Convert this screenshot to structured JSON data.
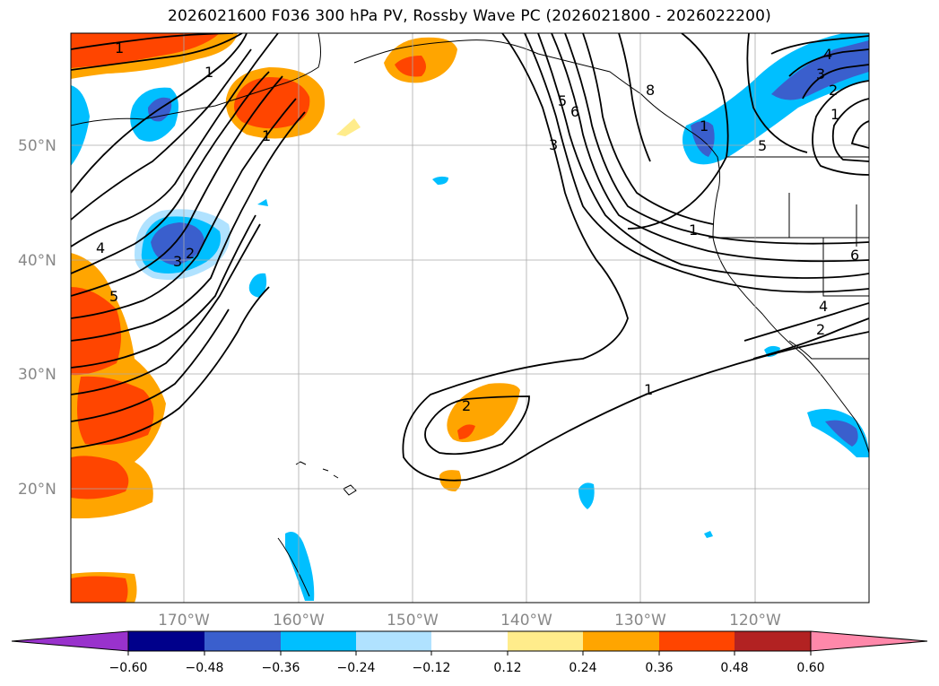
{
  "title": "2026021600 F036 300 hPa PV, Rossby Wave PC (2026021800 - 2026022200)",
  "lat_labels": [
    "50°N",
    "40°N",
    "30°N",
    "20°N"
  ],
  "lon_labels": [
    "170°W",
    "160°W",
    "150°W",
    "140°W",
    "130°W",
    "120°W"
  ],
  "contour_labels": [
    "1",
    "1",
    "1",
    "2",
    "3",
    "4",
    "5",
    "5",
    "6",
    "8",
    "3",
    "1",
    "5",
    "1",
    "2",
    "3",
    "4",
    "1",
    "2",
    "4",
    "6",
    "2",
    "1"
  ],
  "colorbar": {
    "ticks": [
      "−0.60",
      "−0.48",
      "−0.36",
      "−0.24",
      "−0.12",
      "0.12",
      "0.24",
      "0.36",
      "0.48",
      "0.60"
    ],
    "colors": [
      "#9932cc",
      "#00008b",
      "#3a5fcd",
      "#00bfff",
      "#b0e2ff",
      "#ffffff",
      "#ffec8b",
      "#ffa500",
      "#ff4500",
      "#b22222",
      "#ff88aa"
    ]
  }
}
